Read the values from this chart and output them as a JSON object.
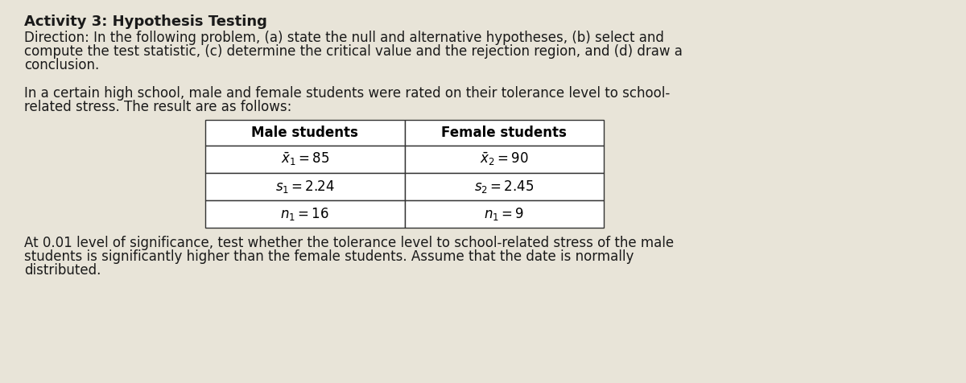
{
  "title": "Activity 3: Hypothesis Testing",
  "direction_line1": "Direction: In the following problem, (a) state the null and alternative hypotheses, (b) select and",
  "direction_line2": "compute the test statistic, (c) determine the critical value and the rejection region, and (d) draw a",
  "direction_line3": "conclusion.",
  "intro_line1": "In a certain high school, male and female students were rated on their tolerance level to school-",
  "intro_line2": "related stress. The result are as follows:",
  "footer_line1": "At 0.01 level of significance, test whether the tolerance level to school-related stress of the male",
  "footer_line2": "students is significantly higher than the female students. Assume that the date is normally",
  "footer_line3": "distributed.",
  "col1_header": "Male students",
  "col2_header": "Female students",
  "row1_col1": "$\\bar{x}_1 = 85$",
  "row1_col2": "$\\bar{x}_2 = 90$",
  "row2_col1": "$s_1 = 2.24$",
  "row2_col2": "$s_2 = 2.45$",
  "row3_col1": "$n_1 = 16$",
  "row3_col2": "$n_1 = 9$",
  "bg_color": "#e8e4d8",
  "text_color": "#1a1a1a",
  "title_fontsize": 13,
  "body_fontsize": 12,
  "table_fontsize": 12
}
